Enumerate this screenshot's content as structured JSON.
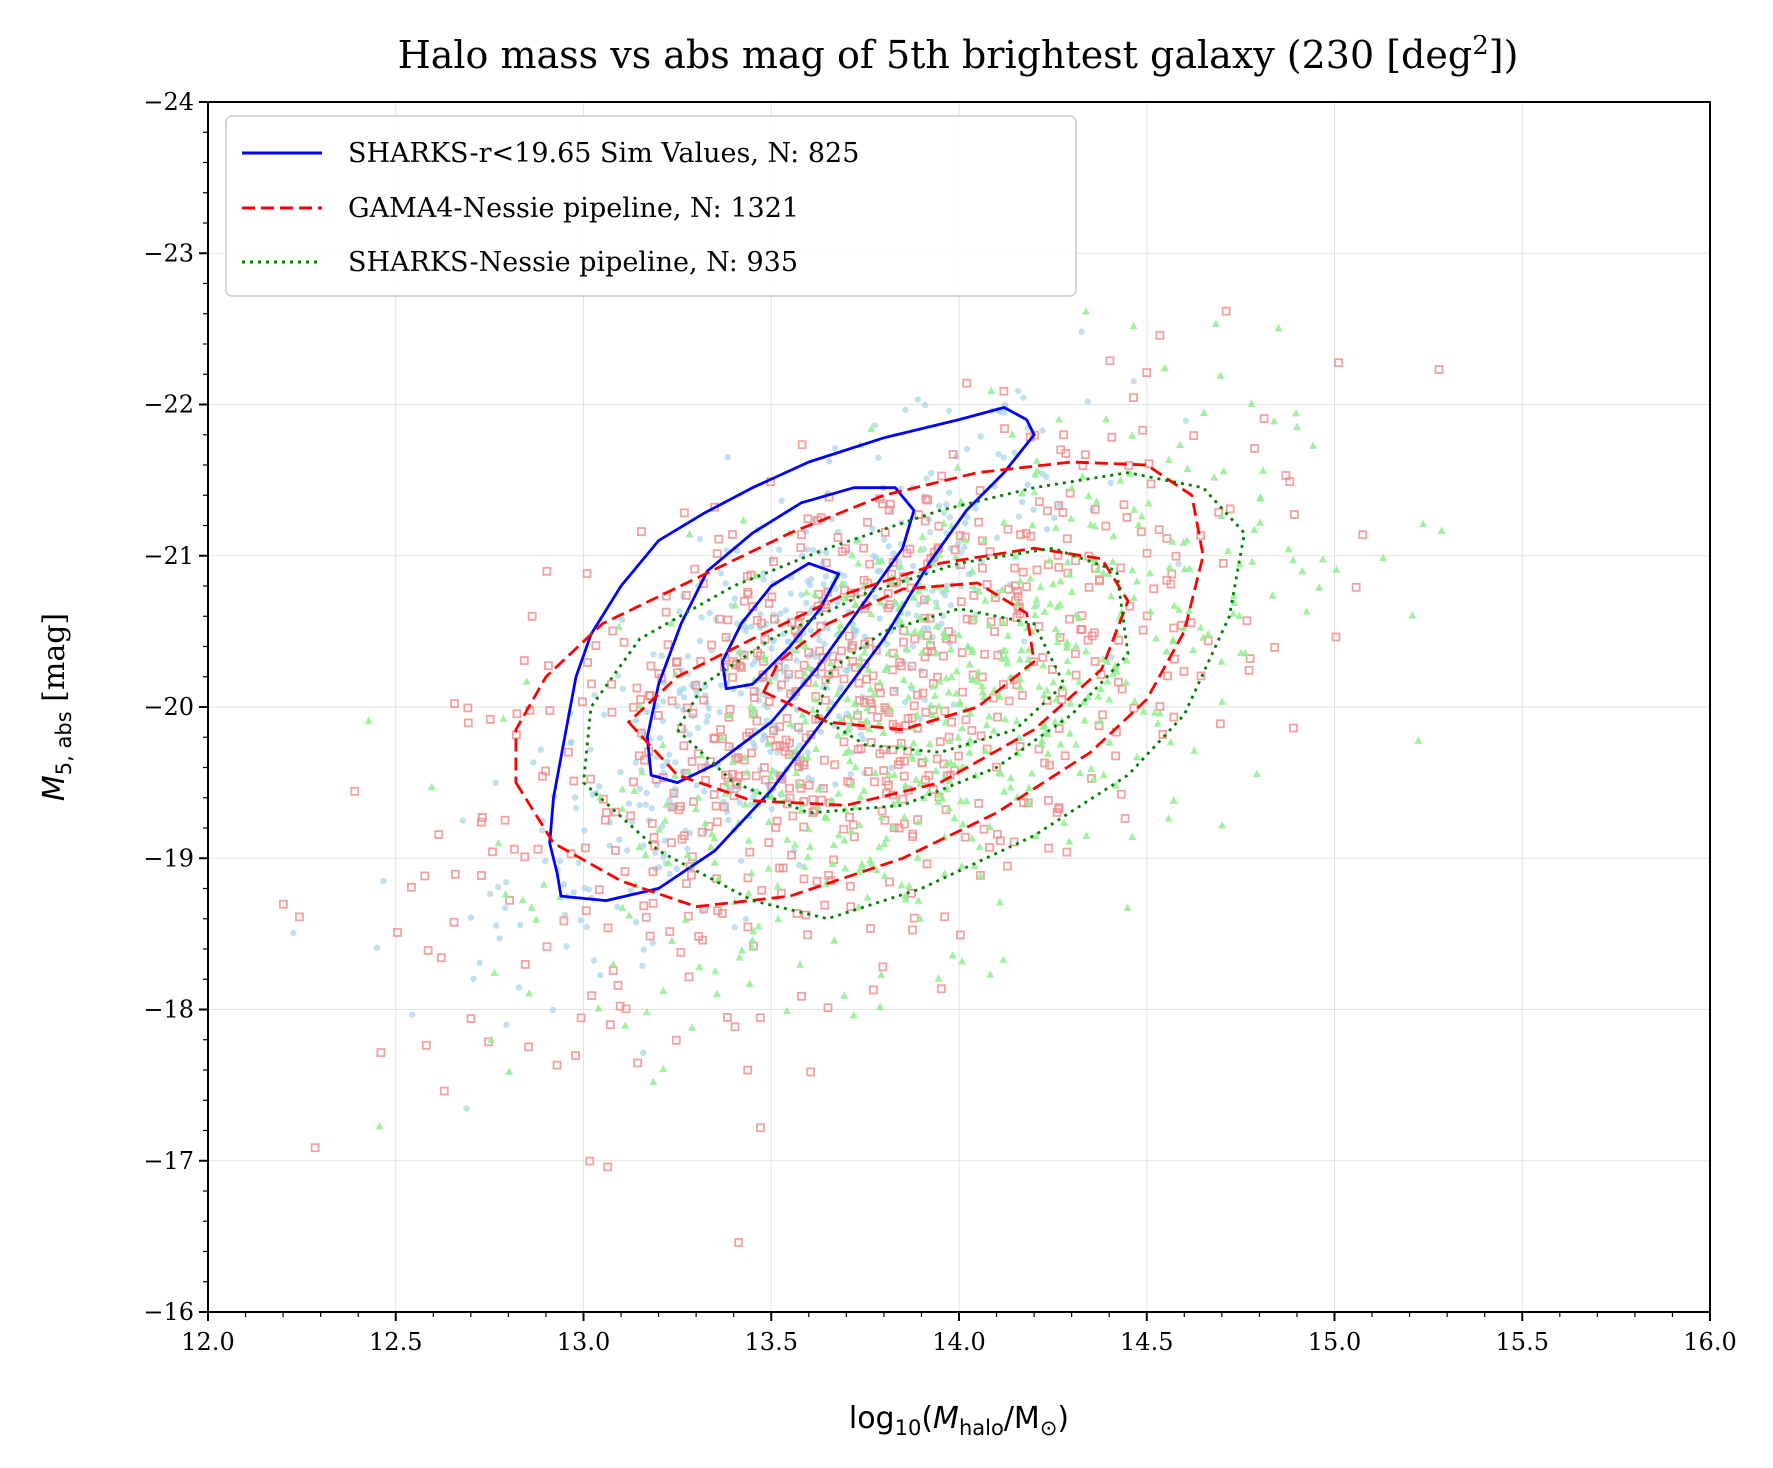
{
  "chart_data": {
    "type": "scatter",
    "title_main": "Halo mass vs abs mag of 5th brightest galaxy (230 [deg",
    "title_sup": "2",
    "title_end": "])",
    "xlabel_pre": "log",
    "xlabel_sub": "10",
    "xlabel_open": "(",
    "xlabel_M": "M",
    "xlabel_halo": "halo",
    "xlabel_slash": "/M",
    "xlabel_sun": "⊙",
    "xlabel_close": ")",
    "ylabel_M": "M",
    "ylabel_sub": "5, abs",
    "ylabel_unit": " [mag]",
    "xlim": [
      12.0,
      16.0
    ],
    "ylim": [
      -16,
      -24
    ],
    "xticks": [
      "12.0",
      "12.5",
      "13.0",
      "13.5",
      "14.0",
      "14.5",
      "15.0",
      "15.5",
      "16.0"
    ],
    "yticks": [
      "−24",
      "−23",
      "−22",
      "−21",
      "−20",
      "−19",
      "−18",
      "−17",
      "−16"
    ],
    "grid": true,
    "legend_position": "top-left",
    "legend": [
      {
        "label": "SHARKS-r<19.65 Sim Values, N: 825",
        "color": "#0000ff",
        "style": "solid"
      },
      {
        "label": "GAMA4-Nessie pipeline, N: 1321",
        "color": "#ff0000",
        "style": "dashed"
      },
      {
        "label": "SHARKS-Nessie pipeline, N: 935",
        "color": "#008000",
        "style": "dotted"
      }
    ],
    "scatter_colors": {
      "sim": "#a6d3e8",
      "gama": "#f08a8a",
      "sharks": "#90ee90"
    },
    "contours": [
      {
        "series": "sim",
        "color": "#0000ff",
        "style": "solid",
        "levels": [
          [
            [
              12.94,
              -18.75
            ],
            [
              13.06,
              -18.72
            ],
            [
              13.2,
              -18.8
            ],
            [
              13.35,
              -19.05
            ],
            [
              13.5,
              -19.45
            ],
            [
              13.65,
              -19.95
            ],
            [
              13.8,
              -20.45
            ],
            [
              13.92,
              -20.95
            ],
            [
              14.02,
              -21.3
            ],
            [
              14.12,
              -21.55
            ],
            [
              14.2,
              -21.8
            ],
            [
              14.18,
              -21.9
            ],
            [
              14.12,
              -21.98
            ],
            [
              14.0,
              -21.9
            ],
            [
              13.8,
              -21.78
            ],
            [
              13.6,
              -21.62
            ],
            [
              13.45,
              -21.45
            ],
            [
              13.32,
              -21.28
            ],
            [
              13.2,
              -21.1
            ],
            [
              13.1,
              -20.8
            ],
            [
              13.02,
              -20.48
            ],
            [
              12.98,
              -20.2
            ],
            [
              12.95,
              -19.8
            ],
            [
              12.92,
              -19.4
            ],
            [
              12.91,
              -19.1
            ],
            [
              12.93,
              -18.9
            ]
          ],
          [
            [
              13.18,
              -19.55
            ],
            [
              13.25,
              -19.5
            ],
            [
              13.35,
              -19.62
            ],
            [
              13.5,
              -19.9
            ],
            [
              13.62,
              -20.25
            ],
            [
              13.75,
              -20.7
            ],
            [
              13.85,
              -21.05
            ],
            [
              13.88,
              -21.3
            ],
            [
              13.83,
              -21.45
            ],
            [
              13.72,
              -21.45
            ],
            [
              13.58,
              -21.35
            ],
            [
              13.45,
              -21.15
            ],
            [
              13.33,
              -20.9
            ],
            [
              13.26,
              -20.55
            ],
            [
              13.2,
              -20.15
            ],
            [
              13.17,
              -19.8
            ]
          ],
          [
            [
              13.38,
              -20.12
            ],
            [
              13.45,
              -20.15
            ],
            [
              13.55,
              -20.4
            ],
            [
              13.63,
              -20.65
            ],
            [
              13.68,
              -20.88
            ],
            [
              13.6,
              -20.95
            ],
            [
              13.5,
              -20.8
            ],
            [
              13.42,
              -20.55
            ],
            [
              13.37,
              -20.3
            ]
          ]
        ]
      },
      {
        "series": "gama",
        "color": "#ff0000",
        "style": "dashed",
        "levels": [
          [
            [
              12.82,
              -19.5
            ],
            [
              12.92,
              -19.1
            ],
            [
              13.1,
              -18.85
            ],
            [
              13.3,
              -18.68
            ],
            [
              13.55,
              -18.75
            ],
            [
              13.85,
              -19.0
            ],
            [
              14.1,
              -19.3
            ],
            [
              14.35,
              -19.7
            ],
            [
              14.5,
              -20.05
            ],
            [
              14.6,
              -20.5
            ],
            [
              14.65,
              -21.0
            ],
            [
              14.62,
              -21.4
            ],
            [
              14.5,
              -21.6
            ],
            [
              14.3,
              -21.62
            ],
            [
              14.05,
              -21.55
            ],
            [
              13.8,
              -21.4
            ],
            [
              13.55,
              -21.15
            ],
            [
              13.3,
              -20.85
            ],
            [
              13.05,
              -20.55
            ],
            [
              12.9,
              -20.2
            ],
            [
              12.82,
              -19.85
            ]
          ],
          [
            [
              13.12,
              -19.9
            ],
            [
              13.25,
              -19.55
            ],
            [
              13.45,
              -19.38
            ],
            [
              13.7,
              -19.35
            ],
            [
              13.95,
              -19.5
            ],
            [
              14.2,
              -19.85
            ],
            [
              14.38,
              -20.25
            ],
            [
              14.45,
              -20.7
            ],
            [
              14.38,
              -20.98
            ],
            [
              14.2,
              -21.05
            ],
            [
              13.95,
              -20.95
            ],
            [
              13.7,
              -20.75
            ],
            [
              13.45,
              -20.45
            ],
            [
              13.25,
              -20.2
            ]
          ],
          [
            [
              13.48,
              -20.1
            ],
            [
              13.65,
              -19.9
            ],
            [
              13.85,
              -19.85
            ],
            [
              14.05,
              -20.0
            ],
            [
              14.2,
              -20.3
            ],
            [
              14.18,
              -20.62
            ],
            [
              14.05,
              -20.82
            ],
            [
              13.85,
              -20.78
            ],
            [
              13.65,
              -20.55
            ],
            [
              13.52,
              -20.3
            ]
          ]
        ]
      },
      {
        "series": "sharks",
        "color": "#008000",
        "style": "dotted",
        "levels": [
          [
            [
              13.0,
              -19.5
            ],
            [
              13.2,
              -19.05
            ],
            [
              13.45,
              -18.72
            ],
            [
              13.65,
              -18.6
            ],
            [
              13.9,
              -18.8
            ],
            [
              14.2,
              -19.15
            ],
            [
              14.45,
              -19.55
            ],
            [
              14.6,
              -19.95
            ],
            [
              14.72,
              -20.6
            ],
            [
              14.76,
              -21.15
            ],
            [
              14.65,
              -21.45
            ],
            [
              14.45,
              -21.55
            ],
            [
              14.2,
              -21.45
            ],
            [
              13.95,
              -21.3
            ],
            [
              13.65,
              -21.05
            ],
            [
              13.4,
              -20.8
            ],
            [
              13.15,
              -20.45
            ],
            [
              13.02,
              -20.0
            ]
          ],
          [
            [
              13.25,
              -19.85
            ],
            [
              13.4,
              -19.5
            ],
            [
              13.6,
              -19.3
            ],
            [
              13.85,
              -19.35
            ],
            [
              14.1,
              -19.6
            ],
            [
              14.3,
              -19.95
            ],
            [
              14.45,
              -20.35
            ],
            [
              14.42,
              -20.9
            ],
            [
              14.25,
              -21.05
            ],
            [
              14.0,
              -20.95
            ],
            [
              13.75,
              -20.75
            ],
            [
              13.5,
              -20.45
            ],
            [
              13.32,
              -20.15
            ]
          ],
          [
            [
              13.62,
              -19.95
            ],
            [
              13.75,
              -19.75
            ],
            [
              13.95,
              -19.7
            ],
            [
              14.15,
              -19.85
            ],
            [
              14.28,
              -20.15
            ],
            [
              14.2,
              -20.55
            ],
            [
              14.0,
              -20.65
            ],
            [
              13.8,
              -20.5
            ],
            [
              13.66,
              -20.25
            ]
          ]
        ]
      }
    ]
  }
}
